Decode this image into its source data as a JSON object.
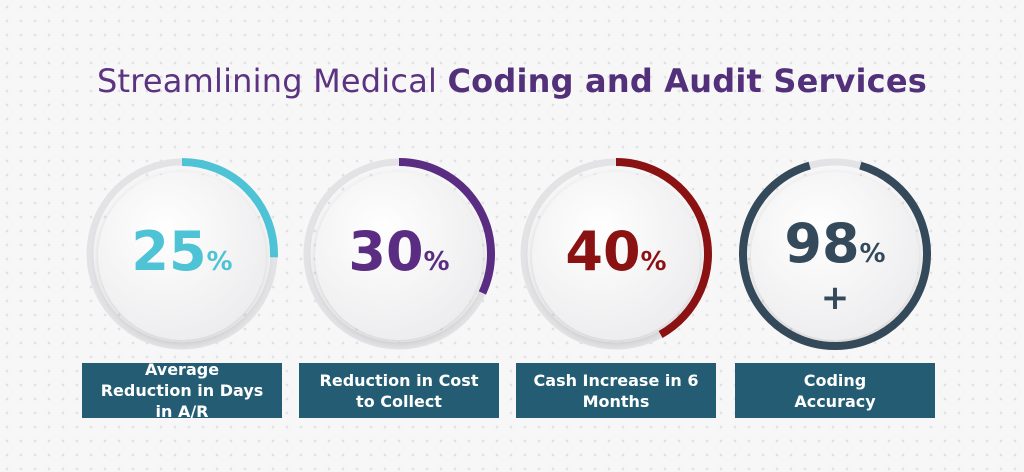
{
  "title": {
    "regular": "Streamlining Medical ",
    "bold": "Coding and Audit Services"
  },
  "stats": [
    {
      "value": "25",
      "unit": "%",
      "suffix": "",
      "label": "Average Reduction in Days in A/R",
      "color": "#4ec3d6"
    },
    {
      "value": "30",
      "unit": "%",
      "suffix": "",
      "label": "Reduction in Cost to Collect",
      "color": "#5b2d82"
    },
    {
      "value": "40",
      "unit": "%",
      "suffix": "",
      "label": "Cash Increase in 6 Months",
      "color": "#8b1212"
    },
    {
      "value": "98",
      "unit": "%",
      "suffix": "+",
      "label": "Coding Accuracy",
      "color": "#34495a"
    }
  ]
}
